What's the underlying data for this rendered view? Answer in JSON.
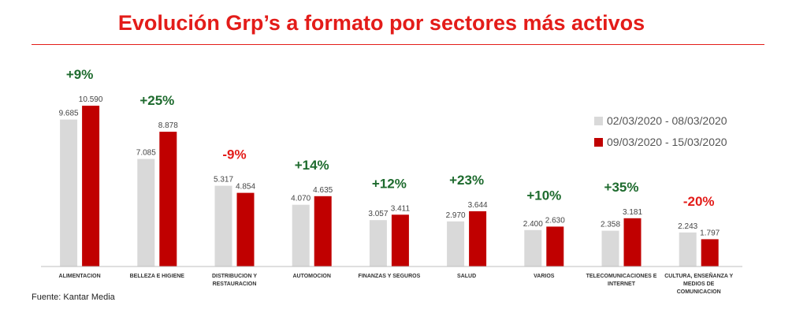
{
  "title": "Evolución Grp’s a formato por sectores más activos",
  "source": "Fuente: Kantar Media",
  "colors": {
    "series1": "#d9d9d9",
    "series2": "#c00000",
    "positive": "#1e6b2e",
    "negative": "#e31c19",
    "title": "#e31c19"
  },
  "chart_data": {
    "type": "bar",
    "categories": [
      [
        "ALIMENTACION"
      ],
      [
        "BELLEZA E HIGIENE"
      ],
      [
        "DISTRIBUCION Y",
        "RESTAURACION"
      ],
      [
        "AUTOMOCION"
      ],
      [
        "FINANZAS Y SEGUROS"
      ],
      [
        "SALUD"
      ],
      [
        "VARIOS"
      ],
      [
        "TELECOMUNICACIONES E",
        "INTERNET"
      ],
      [
        "CULTURA, ENSEÑANZA Y",
        "MEDIOS DE",
        "COMUNICACION"
      ]
    ],
    "series": [
      {
        "name": "02/03/2020 - 08/03/2020",
        "values": [
          9685,
          7085,
          5317,
          4070,
          3057,
          2970,
          2400,
          2358,
          2243
        ],
        "labels": [
          "9.685",
          "7.085",
          "5.317",
          "4.070",
          "3.057",
          "2.970",
          "2.400",
          "2.358",
          "2.243"
        ]
      },
      {
        "name": "09/03/2020 - 15/03/2020",
        "values": [
          10590,
          8878,
          4854,
          4635,
          3411,
          3644,
          2630,
          3181,
          1797
        ],
        "labels": [
          "10.590",
          "8.878",
          "4.854",
          "4.635",
          "3.411",
          "3.644",
          "2.630",
          "3.181",
          "1.797"
        ]
      }
    ],
    "changes": [
      "+9%",
      "+25%",
      "-9%",
      "+14%",
      "+12%",
      "+23%",
      "+10%",
      "+35%",
      "-20%"
    ],
    "ylim": [
      0,
      11000
    ],
    "legend_position": "right",
    "grid": false
  }
}
